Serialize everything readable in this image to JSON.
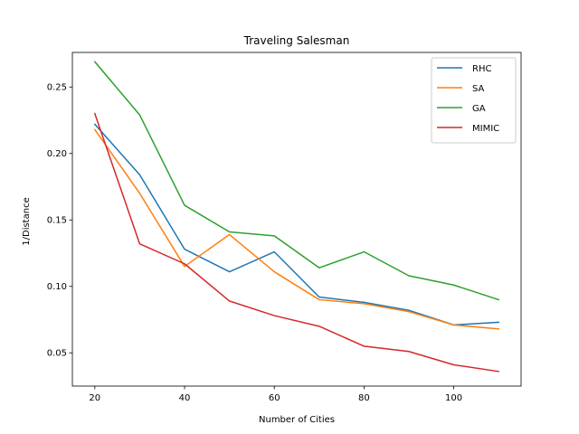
{
  "chart_data": {
    "type": "line",
    "title": "Traveling Salesman",
    "xlabel": "Number of Cities",
    "ylabel": "1/Distance",
    "xlim": [
      15,
      115
    ],
    "ylim": [
      0.025,
      0.276
    ],
    "xticks": [
      20,
      40,
      60,
      80,
      100
    ],
    "yticks": [
      0.05,
      0.1,
      0.15,
      0.2,
      0.25
    ],
    "ytick_labels": [
      "0.05",
      "0.10",
      "0.15",
      "0.20",
      "0.25"
    ],
    "grid": false,
    "legend_position": "top-right",
    "x": [
      20,
      30,
      40,
      50,
      60,
      70,
      80,
      90,
      100,
      110
    ],
    "series": [
      {
        "name": "RHC",
        "color": "#1f77b4",
        "values": [
          0.222,
          0.184,
          0.128,
          0.111,
          0.126,
          0.092,
          0.088,
          0.082,
          0.071,
          0.073
        ]
      },
      {
        "name": "SA",
        "color": "#ff7f0e",
        "values": [
          0.218,
          0.17,
          0.115,
          0.139,
          0.111,
          0.09,
          0.087,
          0.081,
          0.071,
          0.068
        ]
      },
      {
        "name": "GA",
        "color": "#2ca02c",
        "values": [
          0.269,
          0.229,
          0.161,
          0.141,
          0.138,
          0.114,
          0.126,
          0.108,
          0.101,
          0.09
        ]
      },
      {
        "name": "MIMIC",
        "color": "#d62728",
        "values": [
          0.23,
          0.132,
          0.117,
          0.089,
          0.078,
          0.07,
          0.055,
          0.051,
          0.041,
          0.036
        ]
      }
    ]
  }
}
